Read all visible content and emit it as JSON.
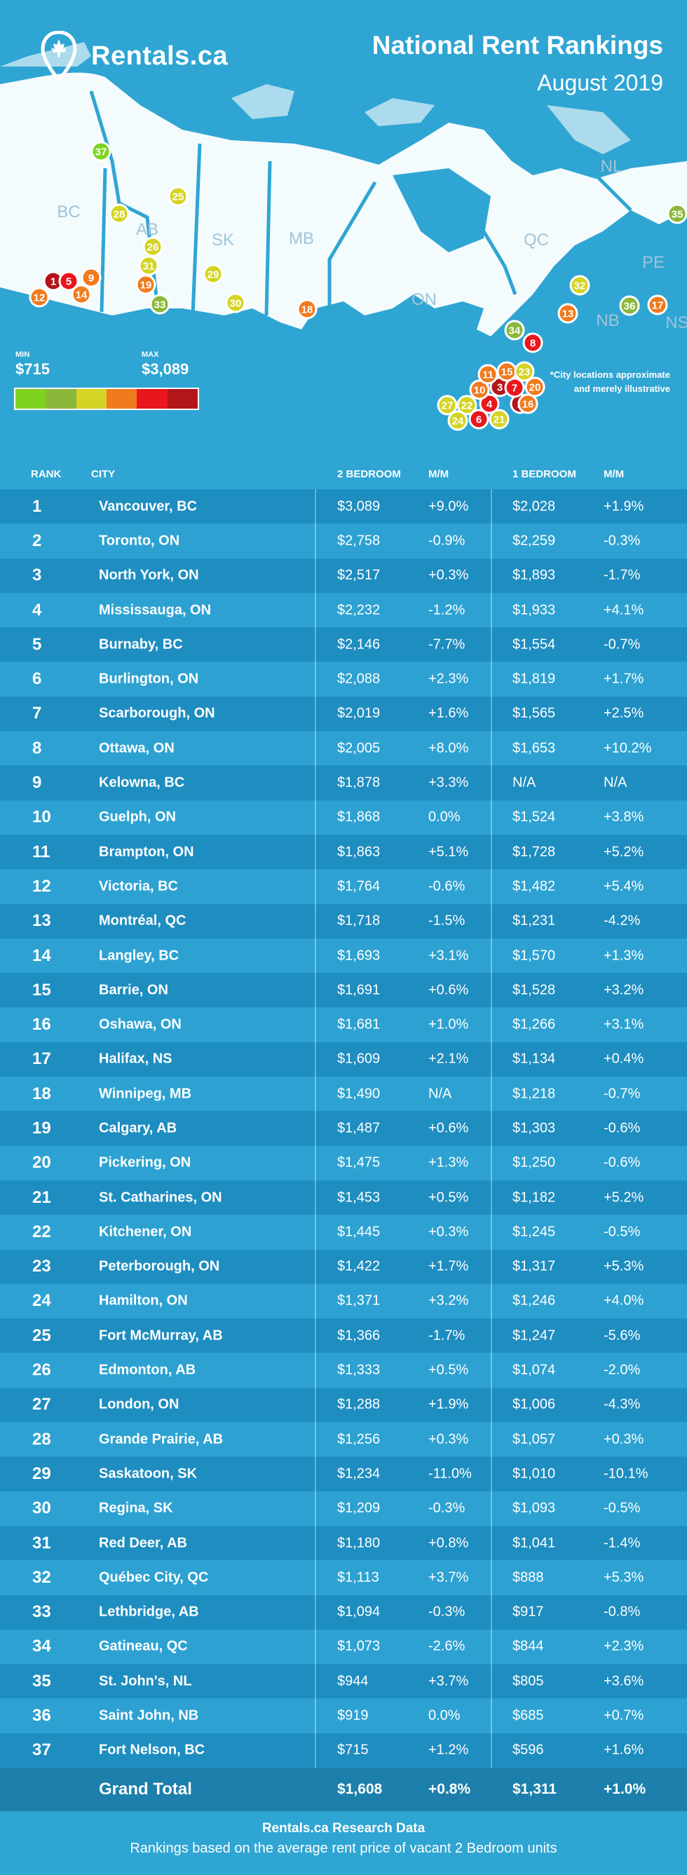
{
  "header": {
    "brand": "Rentals.ca",
    "title": "National Rent Rankings",
    "subtitle": "August 2019"
  },
  "map": {
    "provinces": [
      "BC",
      "AB",
      "SK",
      "MB",
      "ON",
      "QC",
      "NL",
      "PE",
      "NB",
      "NS"
    ],
    "legend": {
      "min_label": "MIN",
      "min_value": "$715",
      "max_label": "MAX",
      "max_value": "$3,089",
      "colors": [
        "#7ed321",
        "#8ab83a",
        "#d4d424",
        "#f07a1e",
        "#e8171e",
        "#b3151b"
      ]
    },
    "note": "*City locations approximate and merely illustrative"
  },
  "table": {
    "headers": {
      "rank": "RANK",
      "city": "CITY",
      "bed2": "2 BEDROOM",
      "mm2": "M/M",
      "bed1": "1 BEDROOM",
      "mm1": "M/M"
    },
    "rows": [
      [
        "1",
        "Vancouver, BC",
        "$3,089",
        "+9.0%",
        "$2,028",
        "+1.9%"
      ],
      [
        "2",
        "Toronto, ON",
        "$2,758",
        "-0.9%",
        "$2,259",
        "-0.3%"
      ],
      [
        "3",
        "North York, ON",
        "$2,517",
        "+0.3%",
        "$1,893",
        "-1.7%"
      ],
      [
        "4",
        "Mississauga, ON",
        "$2,232",
        "-1.2%",
        "$1,933",
        "+4.1%"
      ],
      [
        "5",
        "Burnaby, BC",
        "$2,146",
        "-7.7%",
        "$1,554",
        "-0.7%"
      ],
      [
        "6",
        "Burlington, ON",
        "$2,088",
        "+2.3%",
        "$1,819",
        "+1.7%"
      ],
      [
        "7",
        "Scarborough, ON",
        "$2,019",
        "+1.6%",
        "$1,565",
        "+2.5%"
      ],
      [
        "8",
        "Ottawa, ON",
        "$2,005",
        "+8.0%",
        "$1,653",
        "+10.2%"
      ],
      [
        "9",
        "Kelowna, BC",
        "$1,878",
        "+3.3%",
        "N/A",
        "N/A"
      ],
      [
        "10",
        "Guelph, ON",
        "$1,868",
        "0.0%",
        "$1,524",
        "+3.8%"
      ],
      [
        "11",
        "Brampton, ON",
        "$1,863",
        "+5.1%",
        "$1,728",
        "+5.2%"
      ],
      [
        "12",
        "Victoria, BC",
        "$1,764",
        "-0.6%",
        "$1,482",
        "+5.4%"
      ],
      [
        "13",
        "Montréal, QC",
        "$1,718",
        "-1.5%",
        "$1,231",
        "-4.2%"
      ],
      [
        "14",
        "Langley, BC",
        "$1,693",
        "+3.1%",
        "$1,570",
        "+1.3%"
      ],
      [
        "15",
        "Barrie, ON",
        "$1,691",
        "+0.6%",
        "$1,528",
        "+3.2%"
      ],
      [
        "16",
        "Oshawa, ON",
        "$1,681",
        "+1.0%",
        "$1,266",
        "+3.1%"
      ],
      [
        "17",
        "Halifax, NS",
        "$1,609",
        "+2.1%",
        "$1,134",
        "+0.4%"
      ],
      [
        "18",
        "Winnipeg, MB",
        "$1,490",
        "N/A",
        "$1,218",
        "-0.7%"
      ],
      [
        "19",
        "Calgary, AB",
        "$1,487",
        "+0.6%",
        "$1,303",
        "-0.6%"
      ],
      [
        "20",
        "Pickering, ON",
        "$1,475",
        "+1.3%",
        "$1,250",
        "-0.6%"
      ],
      [
        "21",
        "St. Catharines, ON",
        "$1,453",
        "+0.5%",
        "$1,182",
        "+5.2%"
      ],
      [
        "22",
        "Kitchener, ON",
        "$1,445",
        "+0.3%",
        "$1,245",
        "-0.5%"
      ],
      [
        "23",
        "Peterborough, ON",
        "$1,422",
        "+1.7%",
        "$1,317",
        "+5.3%"
      ],
      [
        "24",
        "Hamilton, ON",
        "$1,371",
        "+3.2%",
        "$1,246",
        "+4.0%"
      ],
      [
        "25",
        "Fort McMurray, AB",
        "$1,366",
        "-1.7%",
        "$1,247",
        "-5.6%"
      ],
      [
        "26",
        "Edmonton, AB",
        "$1,333",
        "+0.5%",
        "$1,074",
        "-2.0%"
      ],
      [
        "27",
        "London, ON",
        "$1,288",
        "+1.9%",
        "$1,006",
        "-4.3%"
      ],
      [
        "28",
        "Grande Prairie, AB",
        "$1,256",
        "+0.3%",
        "$1,057",
        "+0.3%"
      ],
      [
        "29",
        "Saskatoon, SK",
        "$1,234",
        "-11.0%",
        "$1,010",
        "-10.1%"
      ],
      [
        "30",
        "Regina, SK",
        "$1,209",
        "-0.3%",
        "$1,093",
        "-0.5%"
      ],
      [
        "31",
        "Red Deer, AB",
        "$1,180",
        "+0.8%",
        "$1,041",
        "-1.4%"
      ],
      [
        "32",
        "Québec City, QC",
        "$1,113",
        "+3.7%",
        "$888",
        "+5.3%"
      ],
      [
        "33",
        "Lethbridge, AB",
        "$1,094",
        "-0.3%",
        "$917",
        "-0.8%"
      ],
      [
        "34",
        "Gatineau, QC",
        "$1,073",
        "-2.6%",
        "$844",
        "+2.3%"
      ],
      [
        "35",
        "St. John's, NL",
        "$944",
        "+3.7%",
        "$805",
        "+3.6%"
      ],
      [
        "36",
        "Saint John, NB",
        "$919",
        "0.0%",
        "$685",
        "+0.7%"
      ],
      [
        "37",
        "Fort Nelson, BC",
        "$715",
        "+1.2%",
        "$596",
        "+1.6%"
      ]
    ],
    "grand_total": {
      "label": "Grand Total",
      "bed2": "$1,608",
      "mm2": "+0.8%",
      "bed1": "$1,311",
      "mm1": "+1.0%"
    }
  },
  "footer": {
    "title": "Rentals.ca Research Data",
    "text": "Rankings based on the average rent price of vacant 2 Bedroom units"
  }
}
